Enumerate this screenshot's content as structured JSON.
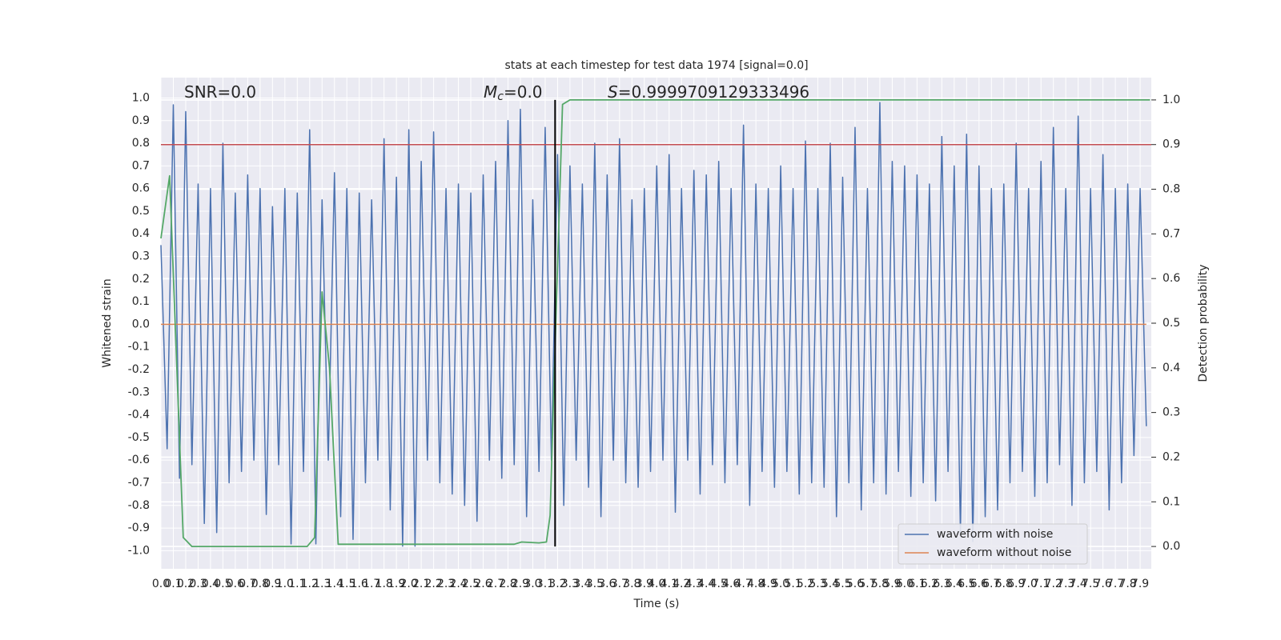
{
  "chart_data": {
    "type": "line",
    "title": "stats at each timestep for test data 1974 [signal=0.0]",
    "xlabel": "Time (s)",
    "ylabel": "Whitened strain",
    "y2label": "Detection probability",
    "xlim": [
      0,
      7.99
    ],
    "ylim": [
      -1.08,
      1.09
    ],
    "y2lim": [
      -0.05,
      1.05
    ],
    "grid": true,
    "legend": "lower right",
    "xticks": [
      {
        "value": 0,
        "label": "0.0"
      },
      {
        "value": 0.1,
        "label": "0.1"
      },
      {
        "value": 0.2,
        "label": "0.2"
      },
      {
        "value": 0.3,
        "label": "0.3"
      },
      {
        "value": 0.4,
        "label": "0.4"
      },
      {
        "value": 0.5,
        "label": "0.5"
      },
      {
        "value": 0.6,
        "label": "0.6"
      },
      {
        "value": 0.7,
        "label": "0.7"
      },
      {
        "value": 0.8,
        "label": "0.8"
      },
      {
        "value": 0.9,
        "label": "0.9"
      },
      {
        "value": 1,
        "label": "1.0"
      },
      {
        "value": 1.1,
        "label": "1.1"
      },
      {
        "value": 1.2,
        "label": "1.2"
      },
      {
        "value": 1.3,
        "label": "1.3"
      },
      {
        "value": 1.4,
        "label": "1.4"
      },
      {
        "value": 1.5,
        "label": "1.5"
      },
      {
        "value": 1.6,
        "label": "1.6"
      },
      {
        "value": 1.7,
        "label": "1.7"
      },
      {
        "value": 1.8,
        "label": "1.8"
      },
      {
        "value": 1.9,
        "label": "1.9"
      },
      {
        "value": 2,
        "label": "2.0"
      },
      {
        "value": 2.1,
        "label": "2.1"
      },
      {
        "value": 2.2,
        "label": "2.2"
      },
      {
        "value": 2.3,
        "label": "2.3"
      },
      {
        "value": 2.4,
        "label": "2.4"
      },
      {
        "value": 2.5,
        "label": "2.5"
      },
      {
        "value": 2.6,
        "label": "2.6"
      },
      {
        "value": 2.7,
        "label": "2.7"
      },
      {
        "value": 2.8,
        "label": "2.8"
      },
      {
        "value": 2.9,
        "label": "2.9"
      },
      {
        "value": 3,
        "label": "3.0"
      },
      {
        "value": 3.1,
        "label": "3.1"
      },
      {
        "value": 3.2,
        "label": "3.2"
      },
      {
        "value": 3.3,
        "label": "3.3"
      },
      {
        "value": 3.4,
        "label": "3.4"
      },
      {
        "value": 3.5,
        "label": "3.5"
      },
      {
        "value": 3.6,
        "label": "3.6"
      },
      {
        "value": 3.7,
        "label": "3.7"
      },
      {
        "value": 3.8,
        "label": "3.8"
      },
      {
        "value": 3.9,
        "label": "3.9"
      },
      {
        "value": 4,
        "label": "4.0"
      },
      {
        "value": 4.1,
        "label": "4.1"
      },
      {
        "value": 4.2,
        "label": "4.2"
      },
      {
        "value": 4.3,
        "label": "4.3"
      },
      {
        "value": 4.4,
        "label": "4.4"
      },
      {
        "value": 4.5,
        "label": "4.5"
      },
      {
        "value": 4.6,
        "label": "4.6"
      },
      {
        "value": 4.7,
        "label": "4.7"
      },
      {
        "value": 4.8,
        "label": "4.8"
      },
      {
        "value": 4.9,
        "label": "4.9"
      },
      {
        "value": 5,
        "label": "5.0"
      },
      {
        "value": 5.1,
        "label": "5.1"
      },
      {
        "value": 5.2,
        "label": "5.2"
      },
      {
        "value": 5.3,
        "label": "5.3"
      },
      {
        "value": 5.4,
        "label": "5.4"
      },
      {
        "value": 5.5,
        "label": "5.5"
      },
      {
        "value": 5.6,
        "label": "5.6"
      },
      {
        "value": 5.7,
        "label": "5.7"
      },
      {
        "value": 5.8,
        "label": "5.8"
      },
      {
        "value": 5.9,
        "label": "5.9"
      },
      {
        "value": 6,
        "label": "6.0"
      },
      {
        "value": 6.1,
        "label": "6.1"
      },
      {
        "value": 6.2,
        "label": "6.2"
      },
      {
        "value": 6.3,
        "label": "6.3"
      },
      {
        "value": 6.4,
        "label": "6.4"
      },
      {
        "value": 6.5,
        "label": "6.5"
      },
      {
        "value": 6.6,
        "label": "6.6"
      },
      {
        "value": 6.7,
        "label": "6.7"
      },
      {
        "value": 6.8,
        "label": "6.8"
      },
      {
        "value": 6.9,
        "label": "6.9"
      },
      {
        "value": 7,
        "label": "7.0"
      },
      {
        "value": 7.1,
        "label": "7.1"
      },
      {
        "value": 7.2,
        "label": "7.2"
      },
      {
        "value": 7.3,
        "label": "7.3"
      },
      {
        "value": 7.4,
        "label": "7.4"
      },
      {
        "value": 7.5,
        "label": "7.5"
      },
      {
        "value": 7.6,
        "label": "7.6"
      },
      {
        "value": 7.7,
        "label": "7.7"
      },
      {
        "value": 7.8,
        "label": "7.8"
      },
      {
        "value": 7.9,
        "label": "7.9"
      }
    ],
    "yticks": [
      {
        "value": 1,
        "label": "1.0"
      },
      {
        "value": 0.9,
        "label": "0.9"
      },
      {
        "value": 0.8,
        "label": "0.8"
      },
      {
        "value": 0.7,
        "label": "0.7"
      },
      {
        "value": 0.6,
        "label": "0.6"
      },
      {
        "value": 0.5,
        "label": "0.5"
      },
      {
        "value": 0.4,
        "label": "0.4"
      },
      {
        "value": 0.3,
        "label": "0.3"
      },
      {
        "value": 0.2,
        "label": "0.2"
      },
      {
        "value": 0.1,
        "label": "0.1"
      },
      {
        "value": 0,
        "label": "0.0"
      },
      {
        "value": -0.1,
        "label": "-0.1"
      },
      {
        "value": -0.2,
        "label": "-0.2"
      },
      {
        "value": -0.3,
        "label": "-0.3"
      },
      {
        "value": -0.4,
        "label": "-0.4"
      },
      {
        "value": -0.5,
        "label": "-0.5"
      },
      {
        "value": -0.6,
        "label": "-0.6"
      },
      {
        "value": -0.7,
        "label": "-0.7"
      },
      {
        "value": -0.8,
        "label": "-0.8"
      },
      {
        "value": -0.9,
        "label": "-0.9"
      },
      {
        "value": -1,
        "label": "-1.0"
      }
    ],
    "y2ticks": [
      {
        "value": 1,
        "label": "1.0"
      },
      {
        "value": 0.9,
        "label": "0.9"
      },
      {
        "value": 0.8,
        "label": "0.8"
      },
      {
        "value": 0.7,
        "label": "0.7"
      },
      {
        "value": 0.6,
        "label": "0.6"
      },
      {
        "value": 0.5,
        "label": "0.5"
      },
      {
        "value": 0.4,
        "label": "0.4"
      },
      {
        "value": 0.3,
        "label": "0.3"
      },
      {
        "value": 0.2,
        "label": "0.2"
      },
      {
        "value": 0.1,
        "label": "0.1"
      },
      {
        "value": 0,
        "label": "0.0"
      }
    ],
    "annotations": [
      {
        "text": "SNR=0.0"
      },
      {
        "symbol": "M",
        "subscript": "c",
        "text": "=0.0"
      },
      {
        "symbol": "S",
        "text": "=0.9999709129333496"
      }
    ],
    "series": [
      {
        "name": "waveform with noise",
        "color": "#4c72b0",
        "x": [
          0,
          0.05,
          0.1,
          0.15,
          0.2,
          0.25,
          0.3,
          0.35,
          0.4,
          0.45,
          0.5,
          0.55,
          0.6,
          0.65,
          0.7,
          0.75,
          0.8,
          0.85,
          0.9,
          0.95,
          1,
          1.05,
          1.1,
          1.15,
          1.2,
          1.25,
          1.3,
          1.35,
          1.4,
          1.45,
          1.5,
          1.55,
          1.6,
          1.65,
          1.7,
          1.75,
          1.8,
          1.85,
          1.9,
          1.95,
          2,
          2.05,
          2.1,
          2.15,
          2.2,
          2.25,
          2.3,
          2.35,
          2.4,
          2.45,
          2.5,
          2.55,
          2.6,
          2.65,
          2.7,
          2.75,
          2.8,
          2.85,
          2.9,
          2.95,
          3,
          3.05,
          3.1,
          3.15,
          3.2,
          3.25,
          3.3,
          3.35,
          3.4,
          3.45,
          3.5,
          3.55,
          3.6,
          3.65,
          3.7,
          3.75,
          3.8,
          3.85,
          3.9,
          3.95,
          4,
          4.05,
          4.1,
          4.15,
          4.2,
          4.25,
          4.3,
          4.35,
          4.4,
          4.45,
          4.5,
          4.55,
          4.6,
          4.65,
          4.7,
          4.75,
          4.8,
          4.85,
          4.9,
          4.95,
          5,
          5.05,
          5.1,
          5.15,
          5.2,
          5.25,
          5.3,
          5.35,
          5.4,
          5.45,
          5.5,
          5.55,
          5.6,
          5.65,
          5.7,
          5.75,
          5.8,
          5.85,
          5.9,
          5.95,
          6,
          6.05,
          6.1,
          6.15,
          6.2,
          6.25,
          6.3,
          6.35,
          6.4,
          6.45,
          6.5,
          6.55,
          6.6,
          6.65,
          6.7,
          6.75,
          6.8,
          6.85,
          6.9,
          6.95,
          7,
          7.05,
          7.1,
          7.15,
          7.2,
          7.25,
          7.3,
          7.35,
          7.4,
          7.45,
          7.5,
          7.55,
          7.6,
          7.65,
          7.7,
          7.75,
          7.8,
          7.85,
          7.9,
          7.95
        ],
        "values": [
          0.35,
          -0.55,
          0.97,
          -0.68,
          0.94,
          -0.62,
          0.62,
          -0.88,
          0.6,
          -0.92,
          0.8,
          -0.7,
          0.58,
          -0.65,
          0.66,
          -0.6,
          0.6,
          -0.84,
          0.52,
          -0.62,
          0.6,
          -0.97,
          0.58,
          -0.65,
          0.86,
          -0.97,
          0.55,
          -0.6,
          0.67,
          -0.85,
          0.6,
          -0.95,
          0.58,
          -0.7,
          0.55,
          -0.6,
          0.82,
          -0.82,
          0.65,
          -0.98,
          0.86,
          -0.98,
          0.72,
          -0.6,
          0.85,
          -0.7,
          0.6,
          -0.75,
          0.62,
          -0.8,
          0.58,
          -0.87,
          0.66,
          -0.6,
          0.72,
          -0.68,
          0.9,
          -0.62,
          0.95,
          -0.85,
          0.55,
          -0.65,
          0.87,
          -0.6,
          0.75,
          -0.8,
          0.7,
          -0.6,
          0.62,
          -0.72,
          0.8,
          -0.85,
          0.66,
          -0.6,
          0.82,
          -0.7,
          0.55,
          -0.72,
          0.6,
          -0.65,
          0.7,
          -0.6,
          0.75,
          -0.83,
          0.6,
          -0.6,
          0.68,
          -0.75,
          0.66,
          -0.62,
          0.72,
          -0.7,
          0.6,
          -0.62,
          0.88,
          -0.8,
          0.62,
          -0.65,
          0.6,
          -0.72,
          0.7,
          -0.65,
          0.6,
          -0.75,
          0.81,
          -0.7,
          0.6,
          -0.72,
          0.8,
          -0.85,
          0.65,
          -0.7,
          0.87,
          -0.82,
          0.6,
          -0.7,
          0.98,
          -0.75,
          0.72,
          -0.65,
          0.7,
          -0.76,
          0.66,
          -0.7,
          0.62,
          -0.78,
          0.83,
          -0.65,
          0.7,
          -0.92,
          0.84,
          -0.96,
          0.7,
          -0.85,
          0.6,
          -0.82,
          0.62,
          -0.7,
          0.8,
          -0.65,
          0.6,
          -0.76,
          0.72,
          -0.7,
          0.87,
          -0.62,
          0.6,
          -0.8,
          0.92,
          -0.7,
          0.6,
          -0.65,
          0.75,
          -0.82,
          0.6,
          -0.7,
          0.62,
          -0.58,
          0.6,
          -0.45
        ]
      },
      {
        "name": "waveform without noise",
        "color": "#dd8452",
        "x": [
          0,
          7.95
        ],
        "values": [
          0,
          0
        ]
      }
    ],
    "probability": {
      "color": "#55a868",
      "axis": "y2",
      "x": [
        0,
        0.07,
        0.18,
        0.25,
        1.18,
        1.24,
        1.3,
        1.36,
        1.43,
        2.85,
        2.91,
        3.05,
        3.11,
        3.14,
        3.18,
        3.24,
        3.3,
        7.98
      ],
      "values": [
        0.69,
        0.83,
        0.02,
        0,
        0,
        0.02,
        0.57,
        0.4,
        0.005,
        0.005,
        0.01,
        0.008,
        0.01,
        0.07,
        0.45,
        0.99,
        1,
        1
      ]
    },
    "threshold": {
      "value": 0.9,
      "axis": "y2",
      "color": "#c44e52"
    },
    "marker_x": {
      "value": 3.18,
      "color": "#000000"
    }
  }
}
